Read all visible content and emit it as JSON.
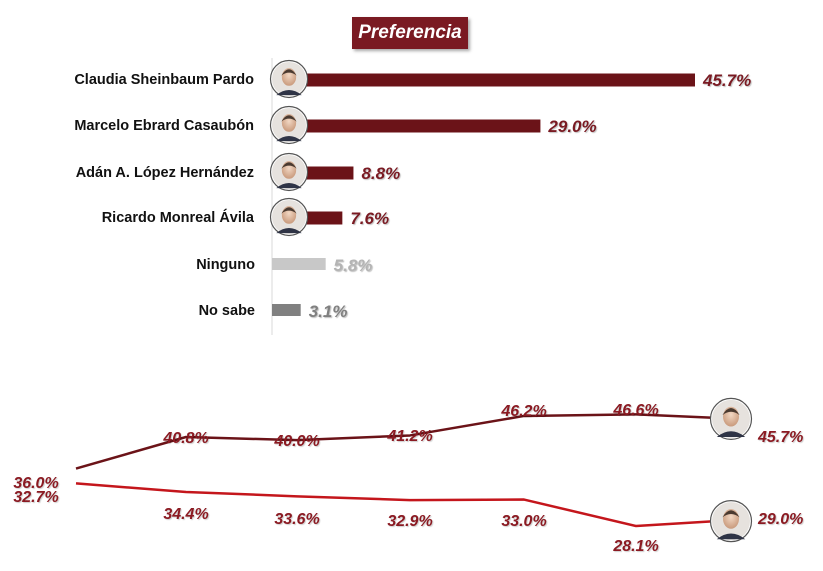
{
  "colors": {
    "dark_red": "#6b1318",
    "red": "#c4161c",
    "light_gray": "#c8c8c8",
    "dark_gray": "#808080",
    "title_bg": "#7a1a22"
  },
  "bar_panel": {
    "title": "Preferencia"
  },
  "chart_data": [
    {
      "type": "bar",
      "orientation": "horizontal",
      "title": "Preferencia",
      "categories": [
        "Claudia Sheinbaum Pardo",
        "Marcelo Ebrard Casaubón",
        "Adán A. López Hernández",
        "Ricardo Monreal Ávila",
        "Ninguno",
        "No sabe"
      ],
      "values": [
        45.7,
        29.0,
        8.8,
        7.6,
        5.8,
        3.1
      ],
      "value_labels": [
        "45.7%",
        "29.0%",
        "8.8%",
        "7.6%",
        "5.8%",
        "3.1%"
      ],
      "bar_colors": [
        "#6b1318",
        "#6b1318",
        "#6b1318",
        "#6b1318",
        "#c8c8c8",
        "#808080"
      ],
      "label_colors": [
        "#7a1a22",
        "#7a1a22",
        "#7a1a22",
        "#7a1a22",
        "#b4b4b4",
        "#808080"
      ],
      "avatars": [
        "avatar",
        "avatar",
        "avatar",
        "avatar",
        "",
        ""
      ]
    },
    {
      "type": "line",
      "x": [
        "1",
        "2",
        "3",
        "4",
        "5",
        "6",
        "7"
      ],
      "series": [
        {
          "values": [
            32.7,
            40.8,
            40.0,
            41.2,
            46.2,
            46.6,
            45.7
          ],
          "labels": [
            "32.7%",
            "40.8%",
            "40.0%",
            "41.2%",
            "46.2%",
            "46.6%",
            "45.7%"
          ],
          "color": "#6b1318"
        },
        {
          "values": [
            36.0,
            34.4,
            33.6,
            32.9,
            33.0,
            28.1,
            29.0
          ],
          "labels": [
            "36.0%",
            "34.4%",
            "33.6%",
            "32.9%",
            "33.0%",
            "28.1%",
            "29.0%"
          ],
          "color": "#c4161c"
        }
      ],
      "end_avatars": [
        "avatar",
        "avatar"
      ]
    }
  ]
}
